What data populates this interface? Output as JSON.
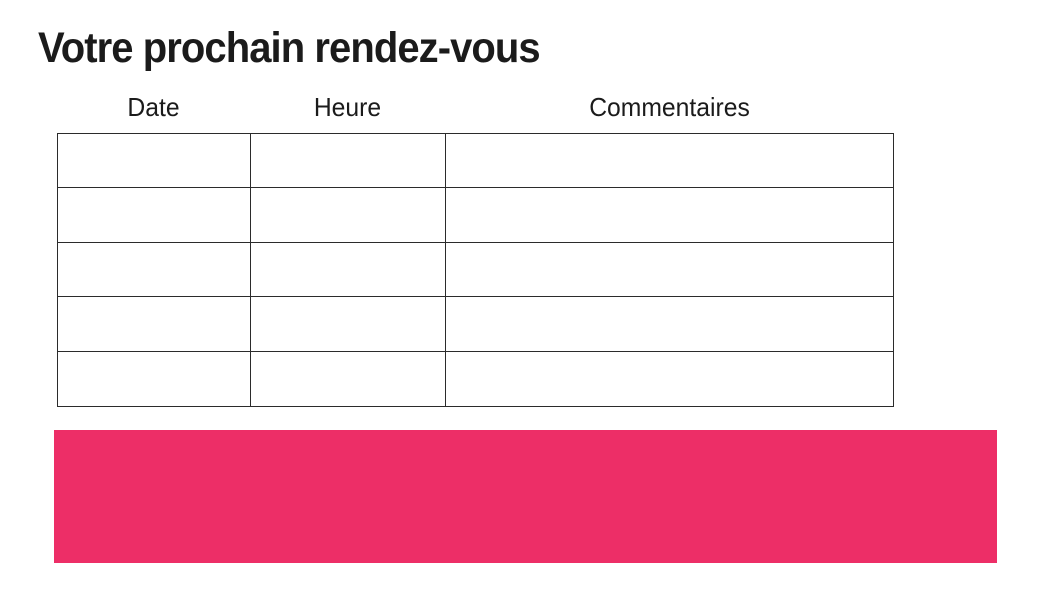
{
  "title": "Votre prochain rendez-vous",
  "table": {
    "headers": [
      "Date",
      "Heure",
      "Commentaires"
    ],
    "rows": [
      [
        "",
        "",
        ""
      ],
      [
        "",
        "",
        ""
      ],
      [
        "",
        "",
        ""
      ],
      [
        "",
        "",
        ""
      ],
      [
        "",
        "",
        ""
      ]
    ]
  },
  "banner": {
    "text": ""
  },
  "colors": {
    "accent": "#ED2E67",
    "border": "#2B2B2B",
    "text": "#1B1B1B",
    "background": "#FFFFFF"
  }
}
